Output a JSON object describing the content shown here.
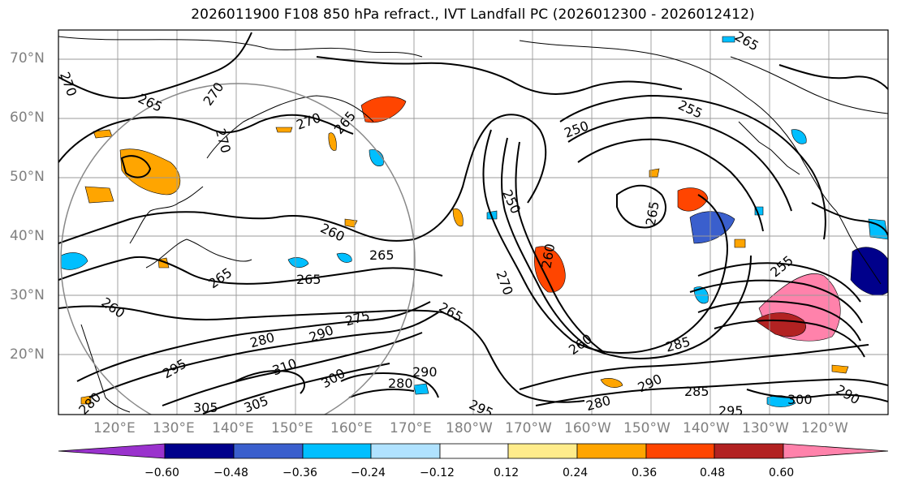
{
  "title": "2026011900 F108 850 hPa refract., IVT Landfall PC (2026012300 - 2026012412)",
  "lat_labels": [
    "70°N",
    "60°N",
    "50°N",
    "40°N",
    "30°N",
    "20°N"
  ],
  "lon_labels": [
    "120°E",
    "130°E",
    "140°E",
    "150°E",
    "160°E",
    "170°E",
    "180°W",
    "170°W",
    "160°W",
    "150°W",
    "140°W",
    "130°W",
    "120°W"
  ],
  "contour_labels": [
    "270",
    "265",
    "270",
    "270",
    "265",
    "265",
    "255",
    "250",
    "250",
    "265",
    "260",
    "265",
    "260",
    "270",
    "265",
    "260",
    "255",
    "265",
    "260",
    "275",
    "280",
    "290",
    "295",
    "310",
    "300",
    "280",
    "290",
    "285",
    "290",
    "285",
    "295",
    "300",
    "290",
    "305",
    "305",
    "280",
    "280",
    "295",
    "270",
    "265"
  ],
  "colorbar": {
    "colors": [
      "#9a32cd",
      "#00008b",
      "#3a5fcd",
      "#00bfff",
      "#b0e2ff",
      "#ffffff",
      "#ffec8b",
      "#ffa500",
      "#ff4500",
      "#b22222",
      "#ff82ab"
    ],
    "tick_labels": [
      "−0.60",
      "−0.48",
      "−0.36",
      "−0.24",
      "−0.12",
      "0.12",
      "0.24",
      "0.36",
      "0.48",
      "0.60"
    ]
  },
  "colors": {
    "contour": "#000000",
    "grid": "#999999",
    "coast": "#000000",
    "circle": "#888888",
    "axis_label": "#808080"
  }
}
